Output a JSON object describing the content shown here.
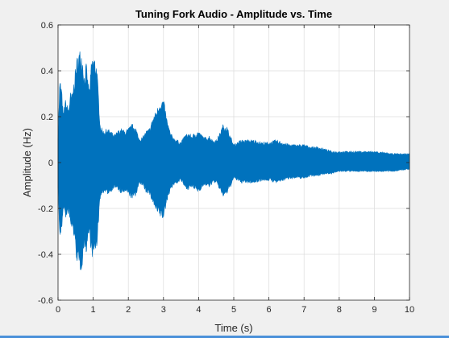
{
  "chart_data": {
    "type": "line",
    "title": "Tuning Fork Audio - Amplitude vs. Time",
    "xlabel": "Time (s)",
    "ylabel": "Amplitude (Hz)",
    "xlim": [
      0,
      10
    ],
    "ylim": [
      -0.6,
      0.6
    ],
    "xticks": [
      0,
      1,
      2,
      3,
      4,
      5,
      6,
      7,
      8,
      9,
      10
    ],
    "yticks": [
      -0.6,
      -0.4,
      -0.2,
      0,
      0.2,
      0.4,
      0.6
    ],
    "xtick_labels": [
      "0",
      "1",
      "2",
      "3",
      "4",
      "5",
      "6",
      "7",
      "8",
      "9",
      "10"
    ],
    "ytick_labels": [
      "-0.6",
      "-0.4",
      "-0.2",
      "0",
      "0.2",
      "0.4",
      "0.6"
    ],
    "grid": true,
    "series": [
      {
        "color": "#0072bd",
        "x": [
          0,
          0.05,
          0.1,
          0.15,
          0.2,
          0.25,
          0.3,
          0.35,
          0.4,
          0.45,
          0.5,
          0.55,
          0.6,
          0.65,
          0.7,
          0.75,
          0.8,
          0.85,
          0.9,
          0.95,
          1.0,
          1.05,
          1.1,
          1.15,
          1.2,
          1.25,
          1.3,
          1.4,
          1.5,
          1.6,
          1.7,
          1.8,
          1.9,
          2.0,
          2.1,
          2.2,
          2.3,
          2.4,
          2.5,
          2.6,
          2.7,
          2.8,
          2.9,
          3.0,
          3.1,
          3.2,
          3.3,
          3.4,
          3.5,
          3.6,
          3.7,
          3.8,
          3.9,
          4.0,
          4.1,
          4.2,
          4.3,
          4.4,
          4.5,
          4.6,
          4.7,
          4.8,
          4.9,
          5.0,
          5.2,
          5.4,
          5.6,
          5.8,
          6.0,
          6.2,
          6.4,
          6.6,
          6.8,
          7.0,
          7.2,
          7.4,
          7.6,
          7.8,
          8.0,
          8.5,
          9.0,
          9.5,
          10.0
        ],
        "upper": [
          0.12,
          0.37,
          0.33,
          0.21,
          0.28,
          0.26,
          0.24,
          0.31,
          0.3,
          0.36,
          0.42,
          0.47,
          0.49,
          0.5,
          0.46,
          0.38,
          0.44,
          0.36,
          0.33,
          0.45,
          0.47,
          0.46,
          0.43,
          0.3,
          0.17,
          0.15,
          0.14,
          0.15,
          0.14,
          0.12,
          0.14,
          0.15,
          0.14,
          0.15,
          0.17,
          0.16,
          0.11,
          0.11,
          0.14,
          0.15,
          0.2,
          0.23,
          0.27,
          0.28,
          0.19,
          0.13,
          0.11,
          0.1,
          0.09,
          0.12,
          0.13,
          0.12,
          0.13,
          0.14,
          0.12,
          0.11,
          0.12,
          0.1,
          0.1,
          0.13,
          0.17,
          0.16,
          0.12,
          0.08,
          0.1,
          0.1,
          0.1,
          0.09,
          0.09,
          0.1,
          0.09,
          0.08,
          0.08,
          0.08,
          0.07,
          0.07,
          0.06,
          0.05,
          0.05,
          0.05,
          0.05,
          0.04,
          0.04
        ],
        "lower": [
          -0.11,
          -0.34,
          -0.31,
          -0.2,
          -0.24,
          -0.25,
          -0.22,
          -0.28,
          -0.3,
          -0.32,
          -0.4,
          -0.44,
          -0.47,
          -0.48,
          -0.44,
          -0.36,
          -0.4,
          -0.34,
          -0.32,
          -0.41,
          -0.42,
          -0.4,
          -0.38,
          -0.27,
          -0.16,
          -0.14,
          -0.13,
          -0.14,
          -0.13,
          -0.11,
          -0.12,
          -0.14,
          -0.13,
          -0.14,
          -0.16,
          -0.15,
          -0.1,
          -0.1,
          -0.13,
          -0.14,
          -0.18,
          -0.22,
          -0.24,
          -0.25,
          -0.17,
          -0.12,
          -0.1,
          -0.09,
          -0.08,
          -0.11,
          -0.12,
          -0.11,
          -0.12,
          -0.13,
          -0.11,
          -0.1,
          -0.11,
          -0.09,
          -0.09,
          -0.12,
          -0.15,
          -0.14,
          -0.11,
          -0.07,
          -0.09,
          -0.09,
          -0.09,
          -0.08,
          -0.08,
          -0.09,
          -0.08,
          -0.07,
          -0.07,
          -0.07,
          -0.06,
          -0.06,
          -0.05,
          -0.05,
          -0.04,
          -0.04,
          -0.04,
          -0.04,
          -0.03
        ]
      }
    ]
  }
}
